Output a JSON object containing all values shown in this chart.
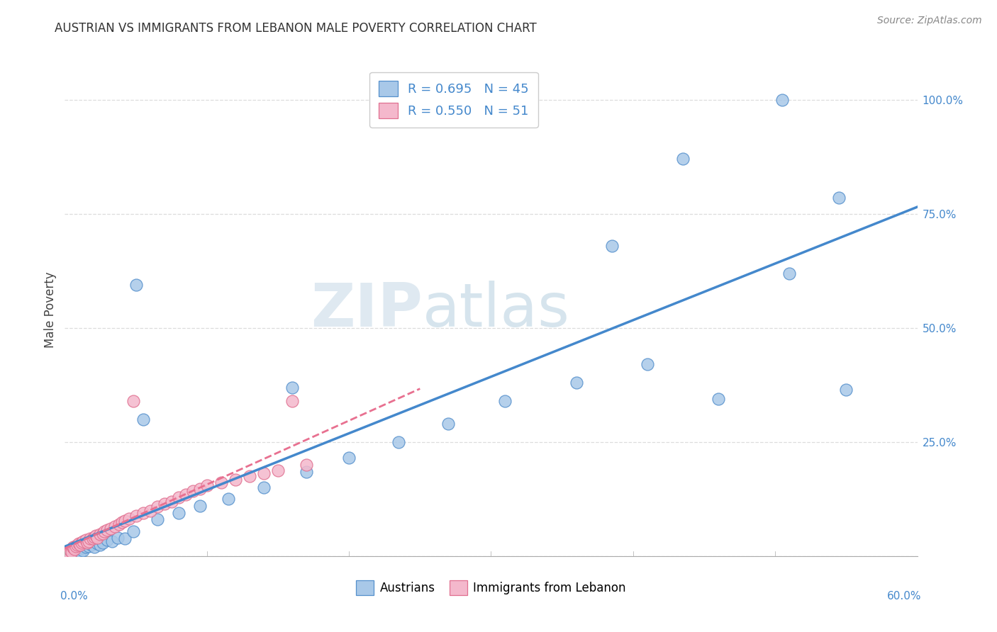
{
  "title": "AUSTRIAN VS IMMIGRANTS FROM LEBANON MALE POVERTY CORRELATION CHART",
  "source": "Source: ZipAtlas.com",
  "ylabel": "Male Poverty",
  "ytick_vals": [
    0.0,
    0.25,
    0.5,
    0.75,
    1.0
  ],
  "ytick_labels": [
    "",
    "25.0%",
    "50.0%",
    "75.0%",
    "100.0%"
  ],
  "xlim": [
    0.0,
    0.6
  ],
  "ylim": [
    0.0,
    1.08
  ],
  "legend_r1": "R = 0.695",
  "legend_n1": "N = 45",
  "legend_r2": "R = 0.550",
  "legend_n2": "N = 51",
  "legend_label1": "Austrians",
  "legend_label2": "Immigrants from Lebanon",
  "watermark_zip": "ZIP",
  "watermark_atlas": "atlas",
  "blue_face": "#a8c8e8",
  "pink_face": "#f4b8cc",
  "blue_edge": "#5590cc",
  "pink_edge": "#e07090",
  "blue_line": "#4488cc",
  "pink_line": "#e87090",
  "grid_color": "#dddddd",
  "bg_color": "#ffffff",
  "blue_x": [
    0.003,
    0.004,
    0.005,
    0.006,
    0.007,
    0.008,
    0.009,
    0.01,
    0.011,
    0.012,
    0.013,
    0.015,
    0.017,
    0.019,
    0.021,
    0.023,
    0.025,
    0.027,
    0.03,
    0.033,
    0.037,
    0.042,
    0.048,
    0.055,
    0.065,
    0.08,
    0.095,
    0.115,
    0.14,
    0.17,
    0.2,
    0.235,
    0.27,
    0.31,
    0.36,
    0.41,
    0.46,
    0.51,
    0.55,
    0.05,
    0.16,
    0.385,
    0.435,
    0.505,
    0.545
  ],
  "blue_y": [
    0.005,
    0.003,
    0.008,
    0.006,
    0.01,
    0.012,
    0.007,
    0.015,
    0.01,
    0.018,
    0.013,
    0.02,
    0.022,
    0.025,
    0.02,
    0.028,
    0.025,
    0.03,
    0.035,
    0.032,
    0.04,
    0.038,
    0.055,
    0.3,
    0.08,
    0.095,
    0.11,
    0.125,
    0.15,
    0.185,
    0.215,
    0.25,
    0.29,
    0.34,
    0.38,
    0.42,
    0.345,
    0.62,
    0.365,
    0.595,
    0.37,
    0.68,
    0.87,
    1.0,
    0.785
  ],
  "pink_x": [
    0.002,
    0.003,
    0.004,
    0.005,
    0.005,
    0.006,
    0.006,
    0.007,
    0.008,
    0.009,
    0.01,
    0.011,
    0.012,
    0.013,
    0.015,
    0.016,
    0.017,
    0.018,
    0.02,
    0.021,
    0.022,
    0.023,
    0.025,
    0.027,
    0.028,
    0.03,
    0.032,
    0.035,
    0.038,
    0.04,
    0.042,
    0.045,
    0.048,
    0.05,
    0.055,
    0.06,
    0.065,
    0.07,
    0.075,
    0.08,
    0.085,
    0.09,
    0.095,
    0.1,
    0.11,
    0.12,
    0.13,
    0.14,
    0.15,
    0.16,
    0.17
  ],
  "pink_y": [
    0.005,
    0.008,
    0.012,
    0.015,
    0.01,
    0.018,
    0.02,
    0.015,
    0.022,
    0.025,
    0.028,
    0.025,
    0.03,
    0.032,
    0.035,
    0.03,
    0.032,
    0.038,
    0.038,
    0.042,
    0.045,
    0.04,
    0.048,
    0.05,
    0.055,
    0.058,
    0.06,
    0.065,
    0.07,
    0.075,
    0.078,
    0.082,
    0.34,
    0.088,
    0.095,
    0.1,
    0.108,
    0.115,
    0.12,
    0.128,
    0.135,
    0.142,
    0.148,
    0.155,
    0.162,
    0.168,
    0.175,
    0.182,
    0.188,
    0.34,
    0.2
  ]
}
